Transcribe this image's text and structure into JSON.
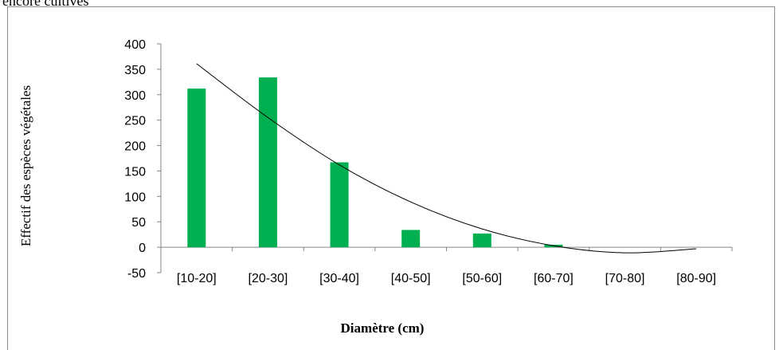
{
  "top_text": "encore cultivés",
  "chart_data": {
    "type": "bar",
    "categories": [
      "[10-20]",
      "[20-30]",
      "[30-40]",
      "[40-50]",
      "[50-60]",
      "[60-70]",
      "[70-80]",
      "[80-90]"
    ],
    "series": [
      {
        "values": [
          312,
          334,
          167,
          34,
          27,
          5,
          0,
          0
        ],
        "color": "#00b050"
      }
    ],
    "trendline": {
      "type": "polynomial",
      "values": [
        361,
        255,
        162,
        89,
        36,
        3,
        -11,
        -3
      ],
      "color": "#000000"
    },
    "xlabel": "Diamètre (cm)",
    "ylabel": "Effectif des espèces végétales",
    "ylim": [
      -50,
      400
    ],
    "yticks": [
      "-50",
      "0",
      "50",
      "100",
      "150",
      "200",
      "250",
      "300",
      "350",
      "400"
    ],
    "grid": false
  }
}
